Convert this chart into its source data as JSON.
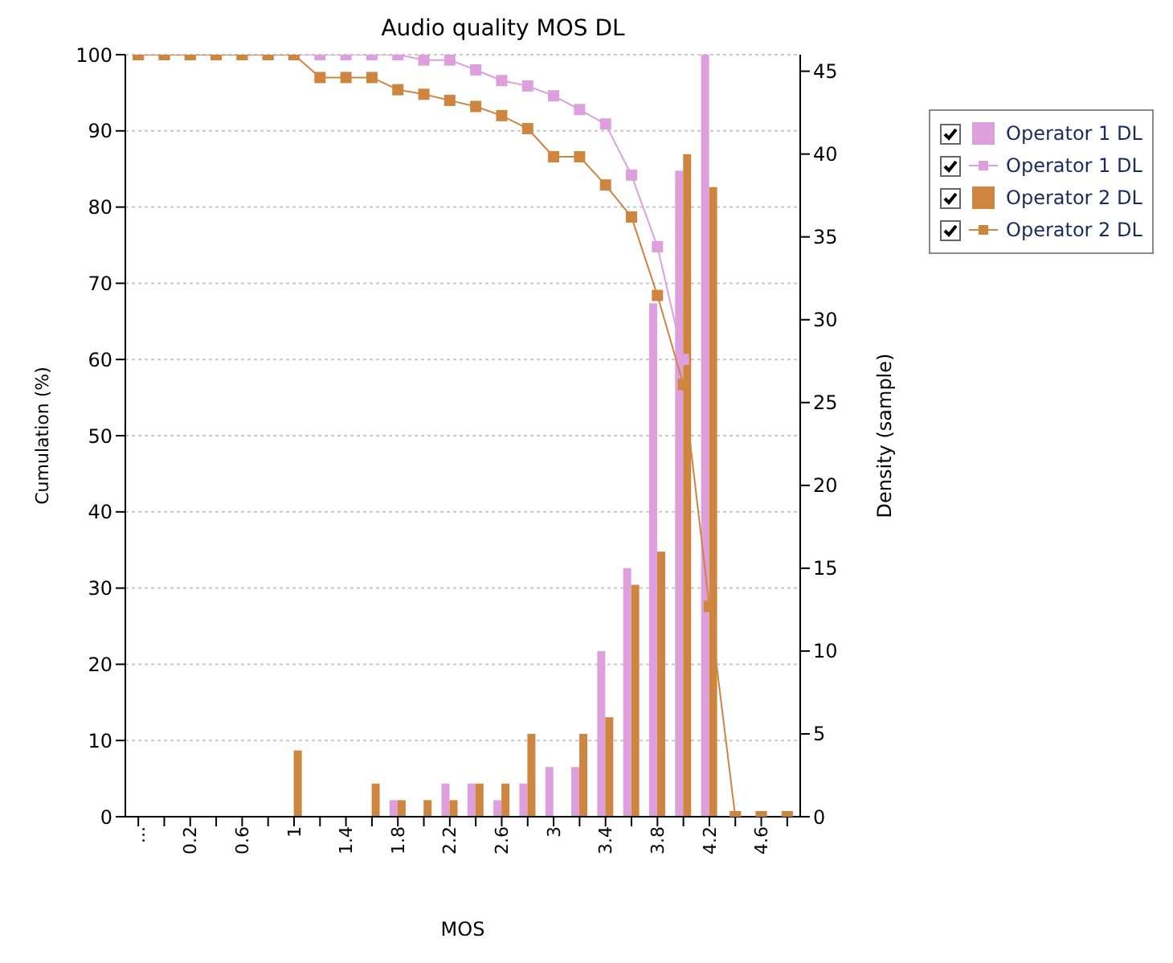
{
  "chart_data": {
    "type": "bar",
    "title": "Audio quality MOS DL",
    "xlabel": "MOS",
    "ylabel": "Cumulation (%)",
    "y2label": "Density (sample)",
    "categories": [
      "...",
      null,
      "0.2",
      null,
      "0.6",
      null,
      "1",
      null,
      "1.4",
      null,
      "1.8",
      null,
      "2.2",
      null,
      "2.6",
      null,
      "3",
      null,
      "3.4",
      null,
      "3.8",
      null,
      "4.2",
      null,
      "4.6",
      null
    ],
    "series": [
      {
        "name": "Operator 1 DL",
        "type": "bar",
        "axis": "y2",
        "color": "#dda0dd",
        "values": [
          0,
          0,
          0,
          0,
          0,
          0,
          0,
          0,
          0,
          0,
          1,
          0,
          2,
          2,
          1,
          2,
          3,
          3,
          10,
          15,
          31,
          39,
          46,
          0,
          0,
          0
        ]
      },
      {
        "name": "Operator 1 DL",
        "type": "line",
        "axis": "y",
        "color": "#dda0dd",
        "values": [
          100,
          100,
          100,
          100,
          100,
          100,
          100,
          100,
          100,
          100,
          100,
          99.3,
          99.3,
          98,
          96.6,
          95.9,
          94.6,
          92.8,
          90.9,
          84.2,
          74.8,
          60,
          null,
          0,
          0,
          0
        ]
      },
      {
        "name": "Operator 2 DL",
        "type": "bar",
        "axis": "y2",
        "color": "#cd853f",
        "values": [
          0,
          0,
          0,
          0,
          0,
          0,
          4,
          0,
          0,
          2,
          1,
          1,
          1,
          2,
          2,
          5,
          0,
          5,
          6,
          14,
          16,
          40,
          38,
          0,
          0,
          0
        ]
      },
      {
        "name": "Operator 2 DL",
        "type": "line",
        "axis": "y",
        "color": "#cd853f",
        "values": [
          100,
          100,
          100,
          100,
          100,
          100,
          100,
          97,
          97,
          97,
          95.4,
          94.8,
          94,
          93.2,
          92,
          90.3,
          86.6,
          86.6,
          82.9,
          78.7,
          68.4,
          56.7,
          27.6,
          0,
          0,
          0
        ]
      }
    ],
    "ylim": [
      0,
      100
    ],
    "yticks": [
      0,
      10,
      20,
      30,
      40,
      50,
      60,
      70,
      80,
      90,
      100
    ],
    "y2lim": [
      0,
      46
    ],
    "y2ticks": [
      0,
      5,
      10,
      15,
      20,
      25,
      30,
      35,
      40,
      45
    ],
    "grid": "y",
    "legend": "right",
    "marker": "square",
    "line_style": "solid"
  }
}
